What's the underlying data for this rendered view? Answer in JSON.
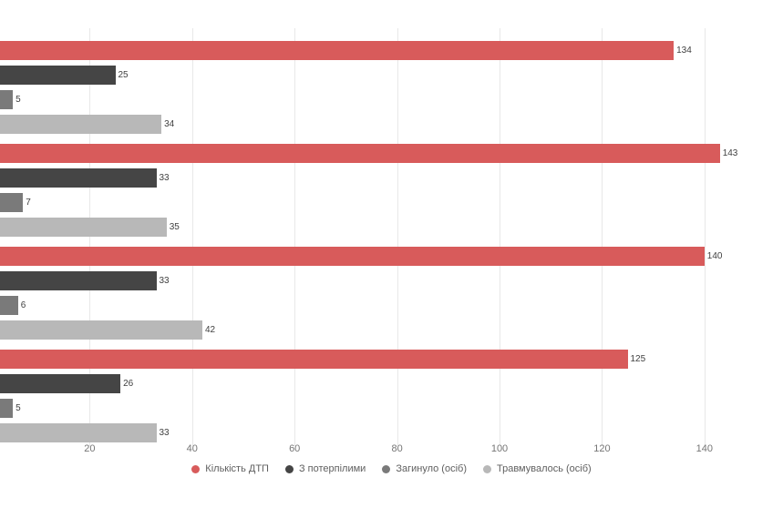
{
  "chart_data": {
    "type": "bar",
    "orientation": "horizontal",
    "title": "",
    "xlabel": "",
    "ylabel": "",
    "grid": true,
    "legend_position": "bottom",
    "x_ticks": [
      20,
      40,
      60,
      80,
      100,
      120,
      140
    ],
    "x_visible_range": [
      0,
      152
    ],
    "groups": 4,
    "categories": [
      "",
      "",
      "",
      ""
    ],
    "series": [
      {
        "name": "Кількість ДТП",
        "color": "#d85b5b",
        "values": [
          134,
          143,
          140,
          125
        ]
      },
      {
        "name": "З потерпілими",
        "color": "#454545",
        "values": [
          25,
          33,
          33,
          26
        ]
      },
      {
        "name": "Загинуло (осіб)",
        "color": "#7a7a7a",
        "values": [
          5,
          7,
          6,
          5
        ]
      },
      {
        "name": "Травмувалось (осіб)",
        "color": "#b8b8b8",
        "values": [
          34,
          35,
          42,
          33
        ]
      }
    ]
  }
}
